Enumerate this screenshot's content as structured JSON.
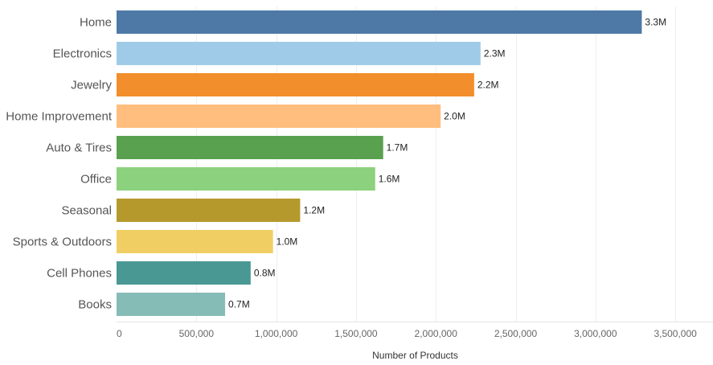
{
  "chart_data": {
    "type": "bar",
    "orientation": "horizontal",
    "categories": [
      "Home",
      "Electronics",
      "Jewelry",
      "Home Improvement",
      "Auto & Tires",
      "Office",
      "Seasonal",
      "Sports & Outdoors",
      "Cell Phones",
      "Books"
    ],
    "values": [
      3290000,
      2280000,
      2240000,
      2030000,
      1670000,
      1620000,
      1150000,
      980000,
      840000,
      680000
    ],
    "data_labels": [
      "3.3M",
      "2.3M",
      "2.2M",
      "2.0M",
      "1.7M",
      "1.6M",
      "1.2M",
      "1.0M",
      "0.8M",
      "0.7M"
    ],
    "colors": [
      "#4e79a7",
      "#a0cbe8",
      "#f28e2b",
      "#ffbe7d",
      "#59a14f",
      "#8cd17d",
      "#b6992d",
      "#f1ce63",
      "#499894",
      "#86bcb6"
    ],
    "title": "",
    "xlabel": "Number of Products",
    "ylabel": "",
    "xlim": [
      0,
      3600000
    ],
    "x_ticks": [
      0,
      500000,
      1000000,
      1500000,
      2000000,
      2500000,
      3000000,
      3500000
    ],
    "x_tick_labels": [
      "0",
      "500,000",
      "1,000,000",
      "1,500,000",
      "2,000,000",
      "2,500,000",
      "3,000,000",
      "3,500,000"
    ],
    "grid": true,
    "legend": "none"
  }
}
